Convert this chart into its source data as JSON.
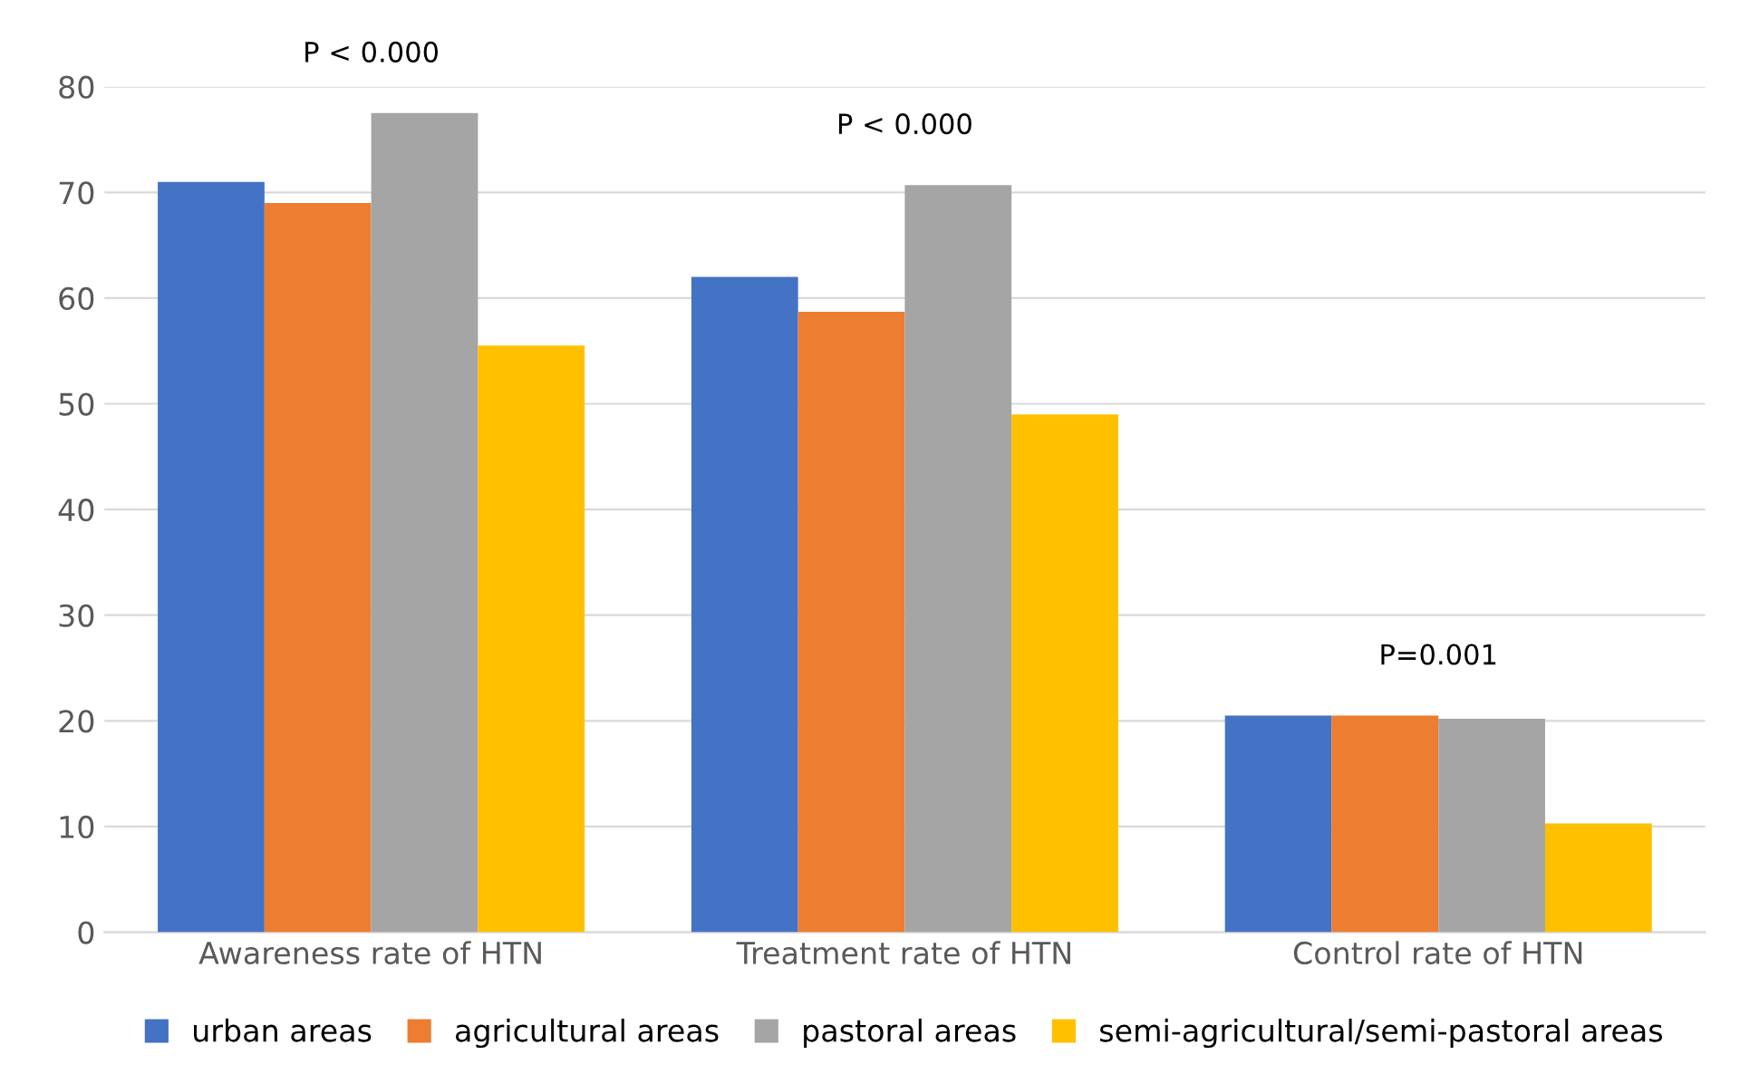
{
  "chart_data": {
    "type": "bar",
    "categories": [
      "Awareness rate of HTN",
      "Treatment rate of HTN",
      "Control rate of HTN"
    ],
    "series": [
      {
        "name": "urban areas",
        "color": "#4472c4",
        "values": [
          71,
          62,
          20.5
        ]
      },
      {
        "name": "agricultural areas",
        "color": "#ed7d31",
        "values": [
          69,
          58.7,
          20.5
        ]
      },
      {
        "name": "pastoral areas",
        "color": "#a5a5a5",
        "values": [
          77.5,
          70.7,
          20.2
        ]
      },
      {
        "name": "semi-agricultural/semi-pastoral areas",
        "color": "#ffc000",
        "values": [
          55.5,
          49,
          10.3
        ]
      }
    ],
    "ylim": [
      0,
      80
    ],
    "yticks": [
      0,
      10,
      20,
      30,
      40,
      50,
      60,
      70,
      80
    ],
    "grid": "y",
    "legend": "bottom",
    "annotations": [
      "P < 0.000",
      "P < 0.000",
      "P=0.001"
    ]
  }
}
